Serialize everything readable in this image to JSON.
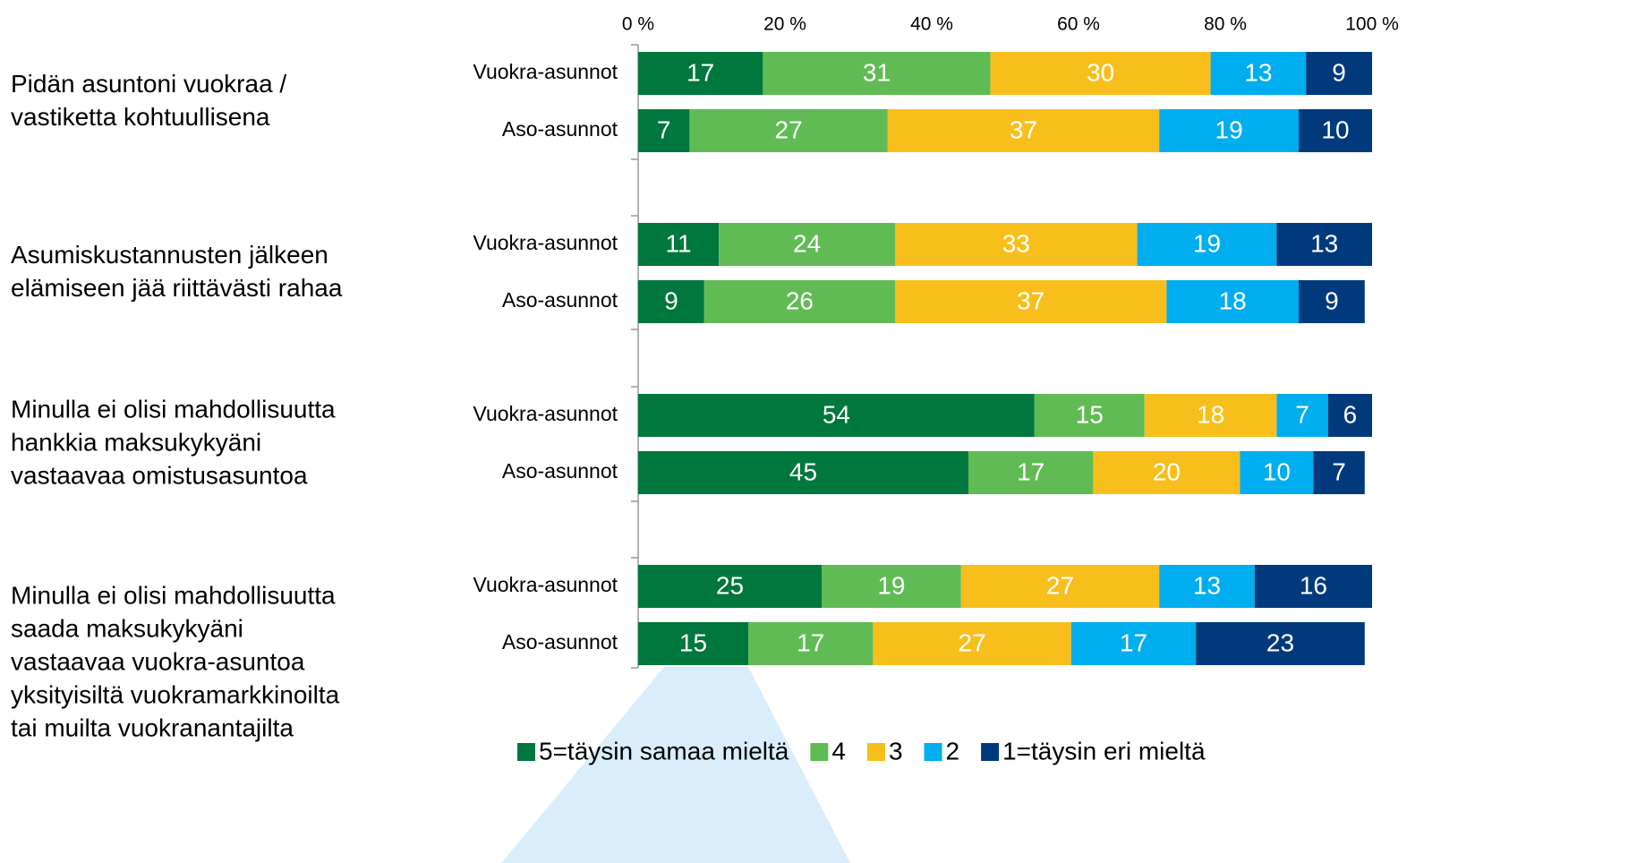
{
  "chart_data": {
    "type": "stacked-barh",
    "categories": [
      "Vuokra-asunnot",
      "Aso-asunnot",
      "Vuokra-asunnot",
      "Aso-asunnot",
      "Vuokra-asunnot",
      "Aso-asunnot",
      "Vuokra-asunnot",
      "Aso-asunnot"
    ],
    "groups": [
      {
        "label": [
          "Pidän asuntoni vuokraa /",
          "vastiketta kohtuullisena"
        ]
      },
      {
        "label": [
          "Asumiskustannusten jälkeen",
          "elämiseen jää riittävästi rahaa"
        ]
      },
      {
        "label": [
          "Minulla ei olisi mahdollisuutta",
          "hankkia maksukykyäni",
          "vastaavaa omistusasuntoa"
        ]
      },
      {
        "label": [
          "Minulla ei olisi mahdollisuutta",
          "saada maksukykyäni",
          "vastaavaa vuokra-asuntoa",
          "yksityisiltä vuokramarkkinoilta",
          "tai muilta vuokranantajilta"
        ]
      }
    ],
    "series": [
      {
        "name": "5=täysin samaa mieltä",
        "color": "#00773c",
        "values": [
          17,
          7,
          11,
          9,
          54,
          45,
          25,
          15
        ]
      },
      {
        "name": "4",
        "color": "#61bb55",
        "values": [
          31,
          27,
          24,
          26,
          15,
          17,
          19,
          17
        ]
      },
      {
        "name": "3",
        "color": "#f8bf1c",
        "values": [
          30,
          37,
          33,
          37,
          18,
          20,
          27,
          27
        ]
      },
      {
        "name": "2",
        "color": "#00adee",
        "values": [
          13,
          19,
          19,
          18,
          7,
          10,
          13,
          17
        ]
      },
      {
        "name": "1=täysin eri mieltä",
        "color": "#003a7d",
        "values": [
          9,
          10,
          13,
          9,
          6,
          7,
          16,
          23
        ]
      }
    ],
    "xlim": [
      0,
      100
    ],
    "xticks": [
      {
        "value": 0,
        "label": "0 %"
      },
      {
        "value": 20,
        "label": "20 %"
      },
      {
        "value": 40,
        "label": "40 %"
      },
      {
        "value": 60,
        "label": "60 %"
      },
      {
        "value": 80,
        "label": "80 %"
      },
      {
        "value": 100,
        "label": "100 %"
      }
    ],
    "legend": "bottom"
  }
}
